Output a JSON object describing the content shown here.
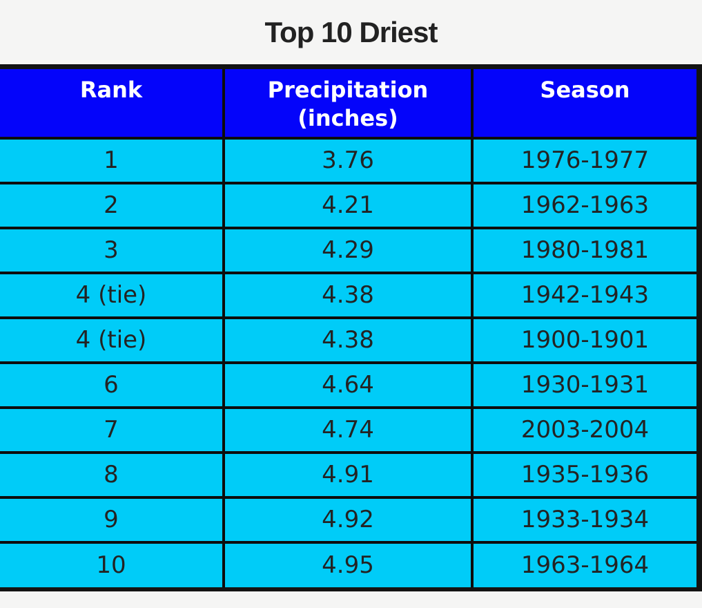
{
  "page": {
    "background_color": "#f5f5f4",
    "title": "Top 10 Driest"
  },
  "table": {
    "header_bg_color": "#0404fa",
    "header_text_color": "#ffffff",
    "row_bg_color": "#00ccf8",
    "row_text_color": "#232323",
    "border_color": "#0d0d0d",
    "headers": {
      "rank": "Rank",
      "precipitation": "Precipitation (inches)",
      "season": "Season"
    },
    "rows": [
      {
        "rank": "1",
        "precipitation": "3.76",
        "season": "1976-1977"
      },
      {
        "rank": "2",
        "precipitation": "4.21",
        "season": "1962-1963"
      },
      {
        "rank": "3",
        "precipitation": "4.29",
        "season": "1980-1981"
      },
      {
        "rank": "4 (tie)",
        "precipitation": "4.38",
        "season": "1942-1943"
      },
      {
        "rank": "4 (tie)",
        "precipitation": "4.38",
        "season": "1900-1901"
      },
      {
        "rank": "6",
        "precipitation": "4.64",
        "season": "1930-1931"
      },
      {
        "rank": "7",
        "precipitation": "4.74",
        "season": "2003-2004"
      },
      {
        "rank": "8",
        "precipitation": "4.91",
        "season": "1935-1936"
      },
      {
        "rank": "9",
        "precipitation": "4.92",
        "season": "1933-1934"
      },
      {
        "rank": "10",
        "precipitation": "4.95",
        "season": "1963-1964"
      }
    ]
  },
  "chart_data": {
    "type": "table",
    "title": "Top 10 Driest",
    "columns": [
      "Rank",
      "Precipitation (inches)",
      "Season"
    ],
    "rows": [
      [
        "1",
        3.76,
        "1976-1977"
      ],
      [
        "2",
        4.21,
        "1962-1963"
      ],
      [
        "3",
        4.29,
        "1980-1981"
      ],
      [
        "4 (tie)",
        4.38,
        "1942-1943"
      ],
      [
        "4 (tie)",
        4.38,
        "1900-1901"
      ],
      [
        "6",
        4.64,
        "1930-1931"
      ],
      [
        "7",
        4.74,
        "2003-2004"
      ],
      [
        "8",
        4.91,
        "1935-1936"
      ],
      [
        "9",
        4.92,
        "1933-1934"
      ],
      [
        "10",
        4.95,
        "1963-1964"
      ]
    ]
  }
}
